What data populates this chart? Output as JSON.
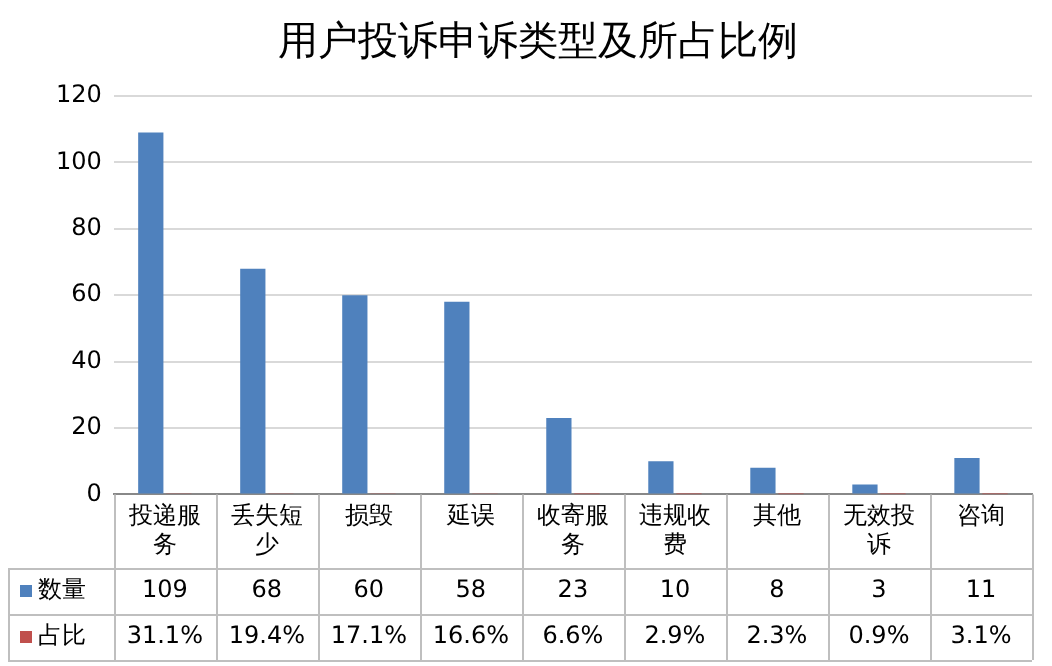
{
  "chart_data": {
    "type": "bar",
    "title": "用户投诉申诉类型及所占比例",
    "categories": [
      "投递服务",
      "丢失短少",
      "损毁",
      "延误",
      "收寄服务",
      "违规收费",
      "其他",
      "无效投诉",
      "咨询"
    ],
    "series": [
      {
        "name": "数量",
        "color": "#4f81bd",
        "values": [
          109,
          68,
          60,
          58,
          23,
          10,
          8,
          3,
          11
        ],
        "value_labels": [
          "109",
          "68",
          "60",
          "58",
          "23",
          "10",
          "8",
          "3",
          "11"
        ]
      },
      {
        "name": "占比",
        "color": "#c0504d",
        "values": [
          0.311,
          0.194,
          0.171,
          0.166,
          0.066,
          0.029,
          0.023,
          0.009,
          0.031
        ],
        "value_labels": [
          "31.1%",
          "19.4%",
          "17.1%",
          "16.6%",
          "6.6%",
          "2.9%",
          "2.3%",
          "0.9%",
          "3.1%"
        ]
      }
    ],
    "ylim": [
      0,
      120
    ],
    "yticks": [
      0,
      20,
      40,
      60,
      80,
      100,
      120
    ],
    "grid": "y",
    "legend": "bottom left"
  }
}
